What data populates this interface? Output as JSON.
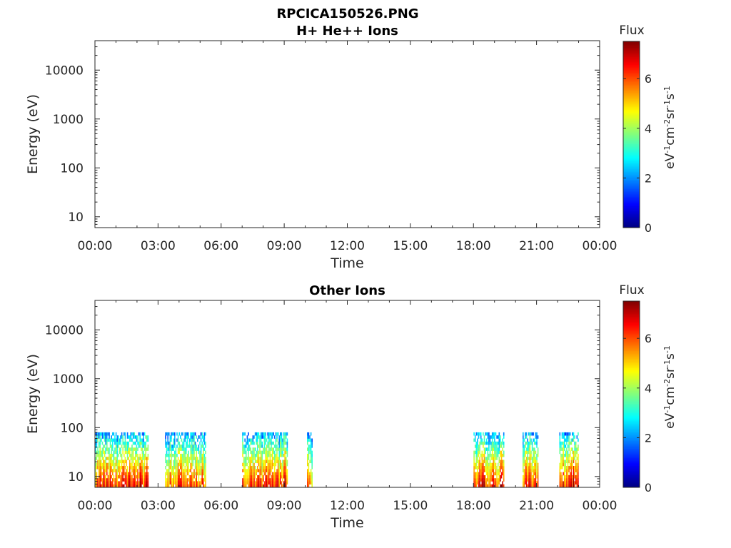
{
  "figure": {
    "title_line1": "RPCICA150526.PNG"
  },
  "chart_data": [
    {
      "type": "heatmap",
      "title": "H+ He++ Ions",
      "xlabel": "Time",
      "ylabel": "Energy (eV)",
      "x_range": [
        "00:00",
        "24:00"
      ],
      "x_ticks": [
        "00:00",
        "03:00",
        "06:00",
        "09:00",
        "12:00",
        "15:00",
        "18:00",
        "21:00",
        "00:00"
      ],
      "y_scale": "log",
      "ylim": [
        6,
        40000
      ],
      "y_ticks": [
        {
          "value": 10,
          "label": "10"
        },
        {
          "value": 100,
          "label": "100"
        },
        {
          "value": 1000,
          "label": "1000"
        },
        {
          "value": 10000,
          "label": "10000"
        }
      ],
      "colorbar": {
        "title": "Flux",
        "label": "eV-1cm-2sr-1s-1",
        "range": [
          0,
          7.5
        ],
        "ticks": [
          "0",
          "2",
          "4",
          "6"
        ],
        "colormap": "jet"
      },
      "intervals": []
    },
    {
      "type": "heatmap",
      "title": "Other Ions",
      "xlabel": "Time",
      "ylabel": "Energy (eV)",
      "x_range": [
        "00:00",
        "24:00"
      ],
      "x_ticks": [
        "00:00",
        "03:00",
        "06:00",
        "09:00",
        "12:00",
        "15:00",
        "18:00",
        "21:00",
        "00:00"
      ],
      "y_scale": "log",
      "ylim": [
        6,
        40000
      ],
      "y_ticks": [
        {
          "value": 10,
          "label": "10"
        },
        {
          "value": 100,
          "label": "100"
        },
        {
          "value": 1000,
          "label": "1000"
        },
        {
          "value": 10000,
          "label": "10000"
        }
      ],
      "colorbar": {
        "title": "Flux",
        "label": "eV-1cm-2sr-1s-1",
        "range": [
          0,
          7.5
        ],
        "ticks": [
          "0",
          "2",
          "4",
          "6"
        ],
        "colormap": "jet"
      },
      "intervals": [
        {
          "start": "00:00",
          "end": "02:30",
          "energy_max_eV": 80,
          "flux_peak": 6.8
        },
        {
          "start": "03:20",
          "end": "05:15",
          "energy_max_eV": 80,
          "flux_peak": 6.3
        },
        {
          "start": "07:00",
          "end": "09:10",
          "energy_max_eV": 80,
          "flux_peak": 7.0
        },
        {
          "start": "10:05",
          "end": "10:20",
          "energy_max_eV": 80,
          "flux_peak": 6.0
        },
        {
          "start": "18:00",
          "end": "19:25",
          "energy_max_eV": 80,
          "flux_peak": 6.9
        },
        {
          "start": "20:20",
          "end": "21:05",
          "energy_max_eV": 80,
          "flux_peak": 6.8
        },
        {
          "start": "22:05",
          "end": "23:00",
          "energy_max_eV": 80,
          "flux_peak": 7.0
        }
      ]
    }
  ]
}
